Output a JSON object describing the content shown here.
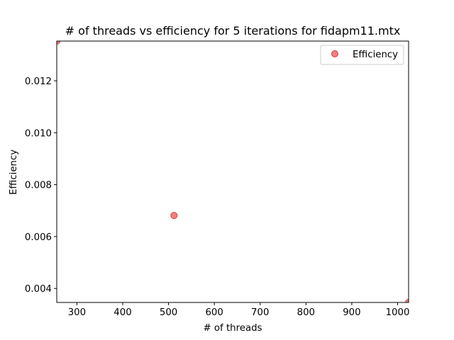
{
  "chart_data": {
    "type": "scatter",
    "title": "# of threads vs efficiency for 5 iterations for fidapm11.mtx",
    "xlabel": "# of threads",
    "ylabel": "Efficiency",
    "xlim": [
      256,
      1024
    ],
    "ylim": [
      0.00346,
      0.01353
    ],
    "x_ticks": [
      300,
      400,
      500,
      600,
      700,
      800,
      900,
      1000
    ],
    "x_tick_labels": [
      "300",
      "400",
      "500",
      "600",
      "700",
      "800",
      "900",
      "1000"
    ],
    "y_ticks": [
      0.004,
      0.006,
      0.008,
      0.01,
      0.012
    ],
    "y_tick_labels": [
      "0.004",
      "0.006",
      "0.008",
      "0.010",
      "0.012"
    ],
    "grid": false,
    "legend_position": "upper right",
    "series": [
      {
        "name": "Efficiency",
        "color": "#f08080",
        "edge_color": "#d63c3c",
        "x": [
          256,
          512,
          1024
        ],
        "y": [
          0.01353,
          0.00681,
          0.00346
        ]
      }
    ]
  }
}
